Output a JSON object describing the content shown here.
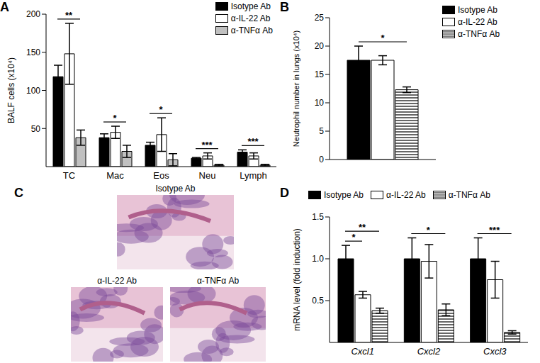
{
  "chart_data": [
    {
      "panel": "A",
      "type": "bar",
      "y_label": "BALF cells (x10⁴)",
      "categories": [
        "TC",
        "Mac",
        "Eos",
        "Neu",
        "Lymph"
      ],
      "series": [
        {
          "name": "Isotype Ab",
          "color": "#000000",
          "values": [
            118,
            38,
            28,
            11,
            19
          ],
          "errors": [
            15,
            5,
            4,
            1,
            3
          ]
        },
        {
          "name": "α-IL-22 Ab",
          "color": "#ffffff",
          "values": [
            148,
            45,
            42,
            14,
            14
          ],
          "errors": [
            40,
            8,
            22,
            4,
            4
          ]
        },
        {
          "name": "α-TNFα Ab",
          "color": "#c0c0c0",
          "values": [
            38,
            20,
            9,
            2,
            2
          ],
          "errors": [
            10,
            8,
            8,
            1,
            1
          ]
        }
      ],
      "ylim": [
        0,
        200
      ],
      "yticks": [
        50,
        100,
        150,
        200
      ],
      "legend": "upper right",
      "annotations": [
        {
          "category": "TC",
          "from": "Isotype Ab",
          "to": "α-TNFα Ab",
          "text": "**"
        },
        {
          "category": "Mac",
          "from": "Isotype Ab",
          "to": "α-TNFα Ab",
          "text": "*"
        },
        {
          "category": "Eos",
          "from": "Isotype Ab",
          "to": "α-TNFα Ab",
          "text": "*"
        },
        {
          "category": "Neu",
          "from": "Isotype Ab",
          "to": "α-TNFα Ab",
          "text": "***"
        },
        {
          "category": "Lymph",
          "from": "Isotype Ab",
          "to": "α-TNFα Ab",
          "text": "***"
        }
      ]
    },
    {
      "panel": "B",
      "type": "bar",
      "y_label": "Neutrophil number in lungs (x10⁴)",
      "categories": [
        null
      ],
      "series": [
        {
          "name": "Isotype Ab",
          "color": "#000000",
          "values": [
            17.5
          ],
          "errors": [
            2.5
          ]
        },
        {
          "name": "α-IL-22 Ab",
          "color": "#ffffff",
          "values": [
            17.5
          ],
          "errors": [
            0.8
          ]
        },
        {
          "name": "α-TNFα Ab",
          "color": "#ffffff",
          "values": [
            12.3
          ],
          "errors": [
            0.5
          ]
        }
      ],
      "ylim": [
        0,
        25
      ],
      "yticks": [
        0,
        5,
        10,
        15,
        20,
        25
      ],
      "legend": "right",
      "annotations": [
        {
          "category": null,
          "from": "Isotype Ab",
          "to": "α-TNFα Ab",
          "text": "*"
        }
      ]
    },
    {
      "panel": "D",
      "type": "bar",
      "y_label": "mRNA level (fold induction)",
      "categories": [
        "Cxcl1",
        "Cxcl2",
        "Cxcl3"
      ],
      "series": [
        {
          "name": "Isotype Ab",
          "color": "#000000",
          "values": [
            1.0,
            1.0,
            1.0
          ],
          "errors": [
            0.16,
            0.25,
            0.25
          ]
        },
        {
          "name": "α-IL-22 Ab",
          "color": "#ffffff",
          "values": [
            0.57,
            0.97,
            0.75
          ],
          "errors": [
            0.04,
            0.2,
            0.22
          ]
        },
        {
          "name": "α-TNFα Ab",
          "color": "#ffffff",
          "values": [
            0.38,
            0.39,
            0.12
          ],
          "errors": [
            0.03,
            0.07,
            0.02
          ]
        }
      ],
      "ylim": [
        0,
        1.5
      ],
      "yticks": [
        0.5,
        {
          "value": 1,
          "label": "1.0"
        },
        1.5
      ],
      "legend": "top",
      "annotations": [
        {
          "category": "Cxcl1",
          "from": "Isotype Ab",
          "to": "α-IL-22 Ab",
          "text": "*"
        },
        {
          "category": "Cxcl1",
          "from": "Isotype Ab",
          "to": "α-TNFα Ab",
          "text": "**"
        },
        {
          "category": "Cxcl2",
          "from": "Isotype Ab",
          "to": "α-TNFα Ab",
          "text": "*"
        },
        {
          "category": "Cxcl3",
          "from": "Isotype Ab",
          "to": "α-TNFα Ab",
          "text": "***"
        }
      ]
    }
  ],
  "images": {
    "panel": "C",
    "labels": [
      "Isotype Ab",
      "α-IL-22 Ab",
      "α-TNFα Ab"
    ]
  }
}
